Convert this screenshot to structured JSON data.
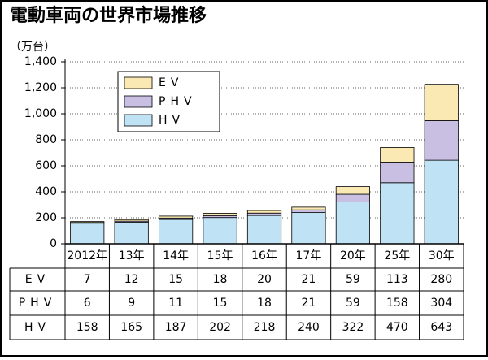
{
  "chart_data": {
    "type": "bar",
    "stacked": true,
    "title": "電動車両の世界市場推移",
    "y_label": "（万台）",
    "categories": [
      "2012年",
      "13年",
      "14年",
      "15年",
      "16年",
      "17年",
      "20年",
      "25年",
      "30年"
    ],
    "series": [
      {
        "name": "HV",
        "color": "#bfe3f5",
        "values": [
          158,
          165,
          187,
          202,
          218,
          240,
          322,
          470,
          643
        ]
      },
      {
        "name": "PHV",
        "color": "#c9bfe2",
        "values": [
          6,
          9,
          11,
          15,
          18,
          21,
          59,
          158,
          304
        ]
      },
      {
        "name": "EV",
        "color": "#fbe9b3",
        "values": [
          7,
          12,
          15,
          18,
          20,
          21,
          59,
          113,
          280
        ]
      }
    ],
    "ylim": [
      0,
      1400
    ],
    "yticks": [
      0,
      200,
      400,
      600,
      800,
      {
        "value": 1000,
        "label": "1,000"
      },
      {
        "value": 1200,
        "label": "1,200"
      },
      {
        "value": 1400,
        "label": "1,400"
      }
    ],
    "grid": true,
    "legend": "upper left"
  }
}
